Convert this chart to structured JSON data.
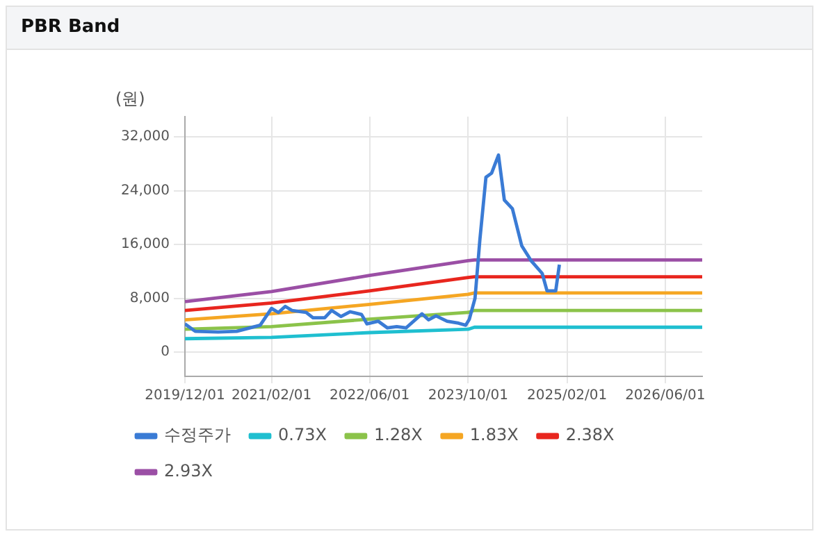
{
  "chart_data": {
    "type": "line",
    "title": "PBR Band",
    "ylabel": "(원)",
    "xlim": [
      "2019-12-01",
      "2026-12-01"
    ],
    "xticks": [
      {
        "value": "2019-12-01",
        "label": "2019/12/01"
      },
      {
        "value": "2021-02-01",
        "label": "2021/02/01"
      },
      {
        "value": "2022-06-01",
        "label": "2022/06/01"
      },
      {
        "value": "2023-10-01",
        "label": "2023/10/01"
      },
      {
        "value": "2025-02-01",
        "label": "2025/02/01"
      },
      {
        "value": "2026-06-01",
        "label": "2026/06/01"
      }
    ],
    "ylim": [
      -3600,
      35000
    ],
    "yticks": [
      {
        "value": 0,
        "label": "0"
      },
      {
        "value": 8000,
        "label": "8,000"
      },
      {
        "value": 16000,
        "label": "16,000"
      },
      {
        "value": 24000,
        "label": "24,000"
      },
      {
        "value": 32000,
        "label": "32,000"
      }
    ],
    "grid": true,
    "legend": "bottom",
    "marker": "none",
    "line_style": "solid",
    "series": [
      {
        "name": "수정주가",
        "color": "#3a7bd5",
        "x": [
          "2019-12-01",
          "2020-01-21",
          "2020-05-13",
          "2020-08-13",
          "2020-12-07",
          "2021-02-01",
          "2021-03-07",
          "2021-04-10",
          "2021-05-13",
          "2021-07-22",
          "2021-08-25",
          "2021-10-22",
          "2021-11-25",
          "2022-01-10",
          "2022-02-25",
          "2022-04-22",
          "2022-05-19",
          "2022-07-13",
          "2022-08-28",
          "2022-10-13",
          "2022-11-28",
          "2023-02-15",
          "2023-03-19",
          "2023-04-25",
          "2023-06-19",
          "2023-08-15",
          "2023-09-19",
          "2023-10-07",
          "2023-11-04",
          "2023-11-28",
          "2023-12-28",
          "2024-01-25",
          "2024-02-28",
          "2024-03-28",
          "2024-05-07",
          "2024-06-22",
          "2024-08-07",
          "2024-10-01",
          "2024-10-25",
          "2024-12-07",
          "2024-12-25"
        ],
        "values": [
          4200,
          3100,
          3000,
          3100,
          4000,
          6500,
          5900,
          6800,
          6200,
          5900,
          5100,
          5100,
          6200,
          5300,
          6000,
          5600,
          4200,
          4600,
          3600,
          3800,
          3600,
          5700,
          4800,
          5400,
          4600,
          4300,
          4000,
          4900,
          8000,
          16700,
          26000,
          26600,
          29300,
          22600,
          21300,
          15800,
          13600,
          11700,
          9100,
          9100,
          13000
        ]
      },
      {
        "name": "0.73X",
        "color": "#1fbfd0",
        "x": [
          "2019-12-01",
          "2021-02-01",
          "2022-06-01",
          "2023-10-01",
          "2023-11-01",
          "2026-12-01"
        ],
        "values": [
          2000,
          2200,
          2900,
          3400,
          3700,
          3700
        ]
      },
      {
        "name": "1.28X",
        "color": "#8bc34a",
        "x": [
          "2019-12-01",
          "2021-02-01",
          "2022-06-01",
          "2023-10-01",
          "2023-11-01",
          "2026-12-01"
        ],
        "values": [
          3400,
          3800,
          4900,
          5900,
          6200,
          6200
        ]
      },
      {
        "name": "1.83X",
        "color": "#f5a623",
        "x": [
          "2019-12-01",
          "2021-02-01",
          "2022-06-01",
          "2023-10-01",
          "2023-11-01",
          "2026-12-01"
        ],
        "values": [
          4800,
          5700,
          7100,
          8600,
          8800,
          8800
        ]
      },
      {
        "name": "2.38X",
        "color": "#e8261e",
        "x": [
          "2019-12-01",
          "2021-02-01",
          "2022-06-01",
          "2023-10-01",
          "2023-11-01",
          "2026-12-01"
        ],
        "values": [
          6200,
          7300,
          9100,
          11100,
          11200,
          11200
        ]
      },
      {
        "name": "2.93X",
        "color": "#9b4fa5",
        "x": [
          "2019-12-01",
          "2021-02-01",
          "2022-06-01",
          "2023-10-01",
          "2023-11-01",
          "2026-12-01"
        ],
        "values": [
          7500,
          9000,
          11400,
          13600,
          13700,
          13700
        ]
      }
    ]
  }
}
